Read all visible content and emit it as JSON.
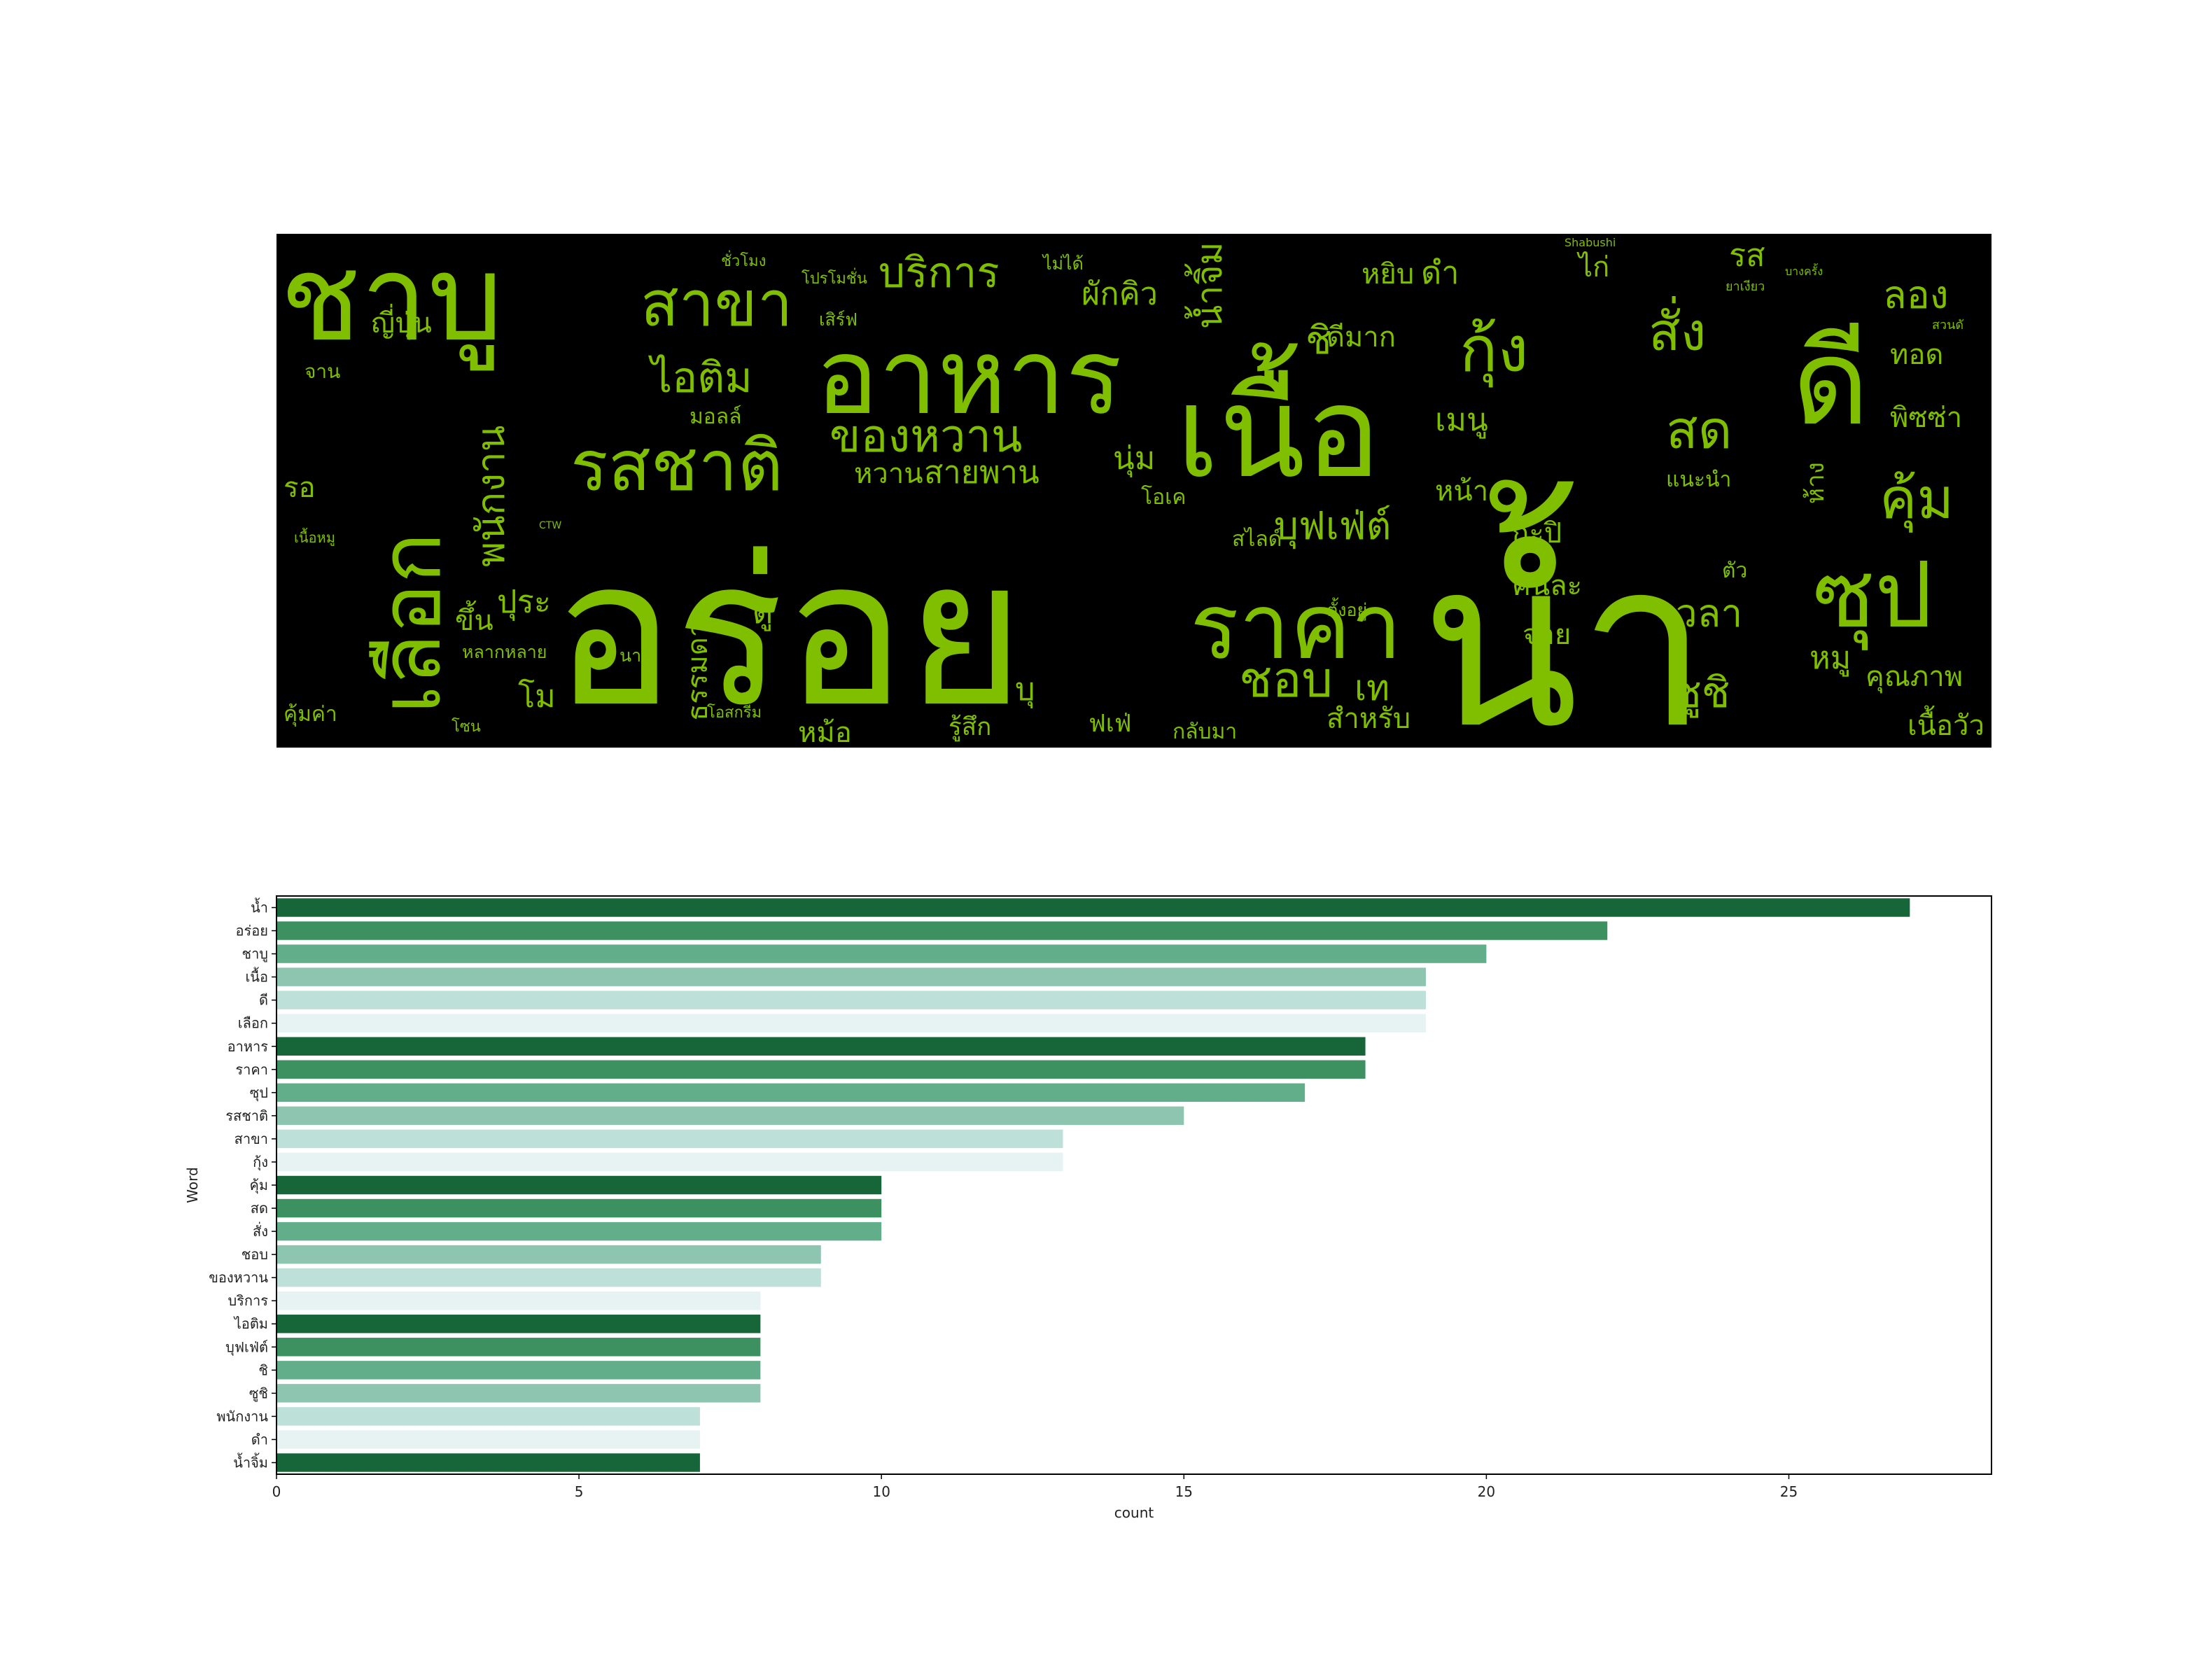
{
  "chart_data": [
    {
      "type": "wordcloud",
      "background": "#000000",
      "color": "#7fbf00",
      "words": [
        {
          "text": "น้ำ",
          "weight": 27
        },
        {
          "text": "อร่อย",
          "weight": 22
        },
        {
          "text": "ชาบู",
          "weight": 20
        },
        {
          "text": "เนื้อ",
          "weight": 19
        },
        {
          "text": "ดี",
          "weight": 19
        },
        {
          "text": "เลือก",
          "weight": 19
        },
        {
          "text": "อาหาร",
          "weight": 18
        },
        {
          "text": "ราคา",
          "weight": 18
        },
        {
          "text": "ซุป",
          "weight": 17
        },
        {
          "text": "รสชาติ",
          "weight": 15
        },
        {
          "text": "สาขา",
          "weight": 13
        },
        {
          "text": "กุ้ง",
          "weight": 13
        },
        {
          "text": "คุ้ม",
          "weight": 10
        },
        {
          "text": "สด",
          "weight": 10
        },
        {
          "text": "สั่ง",
          "weight": 10
        },
        {
          "text": "ชอบ",
          "weight": 9
        },
        {
          "text": "ของหวาน",
          "weight": 9
        },
        {
          "text": "บริการ",
          "weight": 8
        },
        {
          "text": "ไอติม",
          "weight": 8
        },
        {
          "text": "บุฟเฟ่ต์",
          "weight": 8
        },
        {
          "text": "ชิ",
          "weight": 8
        },
        {
          "text": "ซูชิ",
          "weight": 8
        },
        {
          "text": "พนักงาน",
          "weight": 7
        },
        {
          "text": "ดำ",
          "weight": 7
        },
        {
          "text": "น้ำจิ้ม",
          "weight": 7
        },
        {
          "text": "เวลา",
          "weight": 6
        },
        {
          "text": "หมู",
          "weight": 6
        },
        {
          "text": "ผักคิว",
          "weight": 5
        },
        {
          "text": "ดีมาก",
          "weight": 5
        },
        {
          "text": "ลอง",
          "weight": 5
        },
        {
          "text": "เมนู",
          "weight": 5
        },
        {
          "text": "หยิบ",
          "weight": 5
        },
        {
          "text": "ทอด",
          "weight": 4
        },
        {
          "text": "พิซซ่า",
          "weight": 4
        },
        {
          "text": "ญี่ปุ่น",
          "weight": 4
        },
        {
          "text": "ขึ้น",
          "weight": 4
        },
        {
          "text": "ปุระ",
          "weight": 4
        },
        {
          "text": "หลากหลาย",
          "weight": 3
        },
        {
          "text": "โม",
          "weight": 4
        },
        {
          "text": "ธรรมดา",
          "weight": 4
        },
        {
          "text": "ดู",
          "weight": 4
        },
        {
          "text": "สายพาน",
          "weight": 5
        },
        {
          "text": "หวาน",
          "weight": 4
        },
        {
          "text": "มอลล์",
          "weight": 3
        },
        {
          "text": "นุ่ม",
          "weight": 4
        },
        {
          "text": "โอเค",
          "weight": 3
        },
        {
          "text": "สไลด์",
          "weight": 3
        },
        {
          "text": "หน้า",
          "weight": 4
        },
        {
          "text": "กะปิ",
          "weight": 4
        },
        {
          "text": "คนละ",
          "weight": 4
        },
        {
          "text": "จ่าย",
          "weight": 4
        },
        {
          "text": "แนะนำ",
          "weight": 3
        },
        {
          "text": "ห้าง",
          "weight": 3
        },
        {
          "text": "ตัว",
          "weight": 3
        },
        {
          "text": "คุณภาพ",
          "weight": 4
        },
        {
          "text": "เนื้อวัว",
          "weight": 4
        },
        {
          "text": "เท",
          "weight": 4
        },
        {
          "text": "สำหรับ",
          "weight": 4
        },
        {
          "text": "กลับมา",
          "weight": 3
        },
        {
          "text": "ฟเฟ่",
          "weight": 3
        },
        {
          "text": "บุ",
          "weight": 4
        },
        {
          "text": "รู้สึก",
          "weight": 3
        },
        {
          "text": "หม้อ",
          "weight": 3
        },
        {
          "text": "โอสกรีม",
          "weight": 2
        },
        {
          "text": "นาที",
          "weight": 3
        },
        {
          "text": "คุ้มค่า",
          "weight": 3
        },
        {
          "text": "รอ",
          "weight": 4
        },
        {
          "text": "จาน",
          "weight": 3
        },
        {
          "text": "เนื้อหมู",
          "weight": 2
        },
        {
          "text": "โซน",
          "weight": 2
        },
        {
          "text": "ไก่",
          "weight": 3
        },
        {
          "text": "รส",
          "weight": 4
        },
        {
          "text": "ตั้งอยู่",
          "weight": 3
        },
        {
          "text": "ชั่วโมง",
          "weight": 2
        },
        {
          "text": "โปรโมชั่น",
          "weight": 2
        },
        {
          "text": "เสิร์ฟ",
          "weight": 2
        },
        {
          "text": "ไม่ได้",
          "weight": 2
        },
        {
          "text": "Shabushi",
          "weight": 1
        },
        {
          "text": "CTW",
          "weight": 1
        },
        {
          "text": "สวนดั",
          "weight": 1
        },
        {
          "text": "ยาเงียว",
          "weight": 1
        },
        {
          "text": "บางครั้ง",
          "weight": 1
        }
      ]
    },
    {
      "type": "bar",
      "orientation": "horizontal",
      "categories": [
        "น้ำ",
        "อร่อย",
        "ชาบู",
        "เนื้อ",
        "ดี",
        "เลือก",
        "อาหาร",
        "ราคา",
        "ซุป",
        "รสชาติ",
        "สาขา",
        "กุ้ง",
        "คุ้ม",
        "สด",
        "สั่ง",
        "ชอบ",
        "ของหวาน",
        "บริการ",
        "ไอติม",
        "บุฟเฟ่ต์",
        "ชิ",
        "ซูชิ",
        "พนักงาน",
        "ดำ",
        "น้ำจิ้ม"
      ],
      "values": [
        27,
        22,
        20,
        19,
        19,
        19,
        18,
        18,
        17,
        15,
        13,
        13,
        10,
        10,
        10,
        9,
        9,
        8,
        8,
        8,
        8,
        8,
        7,
        7,
        7
      ],
      "xlabel": "count",
      "ylabel": "Word",
      "xlim": [
        0,
        28.35
      ],
      "xticks": [
        0,
        5,
        10,
        15,
        20,
        25
      ],
      "palette": [
        "#17663a",
        "#3d9160",
        "#63ae8a",
        "#8dc5b1",
        "#bde0d9",
        "#e6f3f2"
      ],
      "grid": false
    }
  ]
}
